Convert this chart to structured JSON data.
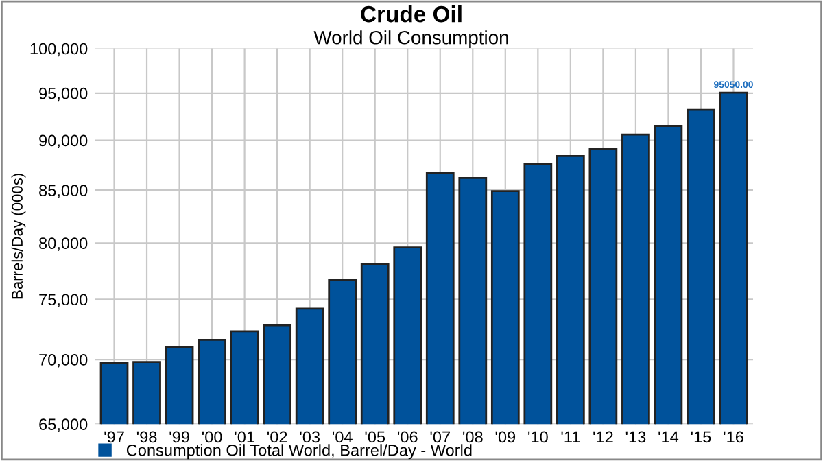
{
  "chart_data": {
    "type": "bar",
    "title": "Crude Oil",
    "subtitle": "World Oil Consumption",
    "ylabel": "Barrels/Day (000s)",
    "categories": [
      "'97",
      "'98",
      "'99",
      "'00",
      "'01",
      "'02",
      "'03",
      "'04",
      "'05",
      "'06",
      "'07",
      "'08",
      "'09",
      "'10",
      "'11",
      "'12",
      "'13",
      "'14",
      "'15",
      "'16"
    ],
    "series": [
      {
        "name": "Consumption Oil Total World, Barrel/Day - World",
        "color": "#00529b",
        "values": [
          69700,
          69800,
          71000,
          71600,
          72300,
          72800,
          74200,
          76700,
          78100,
          79600,
          86700,
          86200,
          84900,
          87600,
          88400,
          89100,
          90600,
          91500,
          93200,
          95050
        ],
        "value_labels": [
          null,
          null,
          null,
          null,
          null,
          null,
          null,
          null,
          null,
          null,
          null,
          null,
          null,
          null,
          null,
          null,
          null,
          null,
          null,
          "95050.00"
        ]
      }
    ],
    "log": true,
    "ylim": [
      65000,
      100000
    ],
    "yticks": [
      {
        "value": 65000,
        "label": "65,000"
      },
      {
        "value": 70000,
        "label": "70,000"
      },
      {
        "value": 75000,
        "label": "75,000"
      },
      {
        "value": 80000,
        "label": "80,000"
      },
      {
        "value": 85000,
        "label": "85,000"
      },
      {
        "value": 90000,
        "label": "90,000"
      },
      {
        "value": 95000,
        "label": "95,000"
      },
      {
        "value": 100000,
        "label": "100,000"
      }
    ],
    "grid": true,
    "legend": "bottom"
  }
}
